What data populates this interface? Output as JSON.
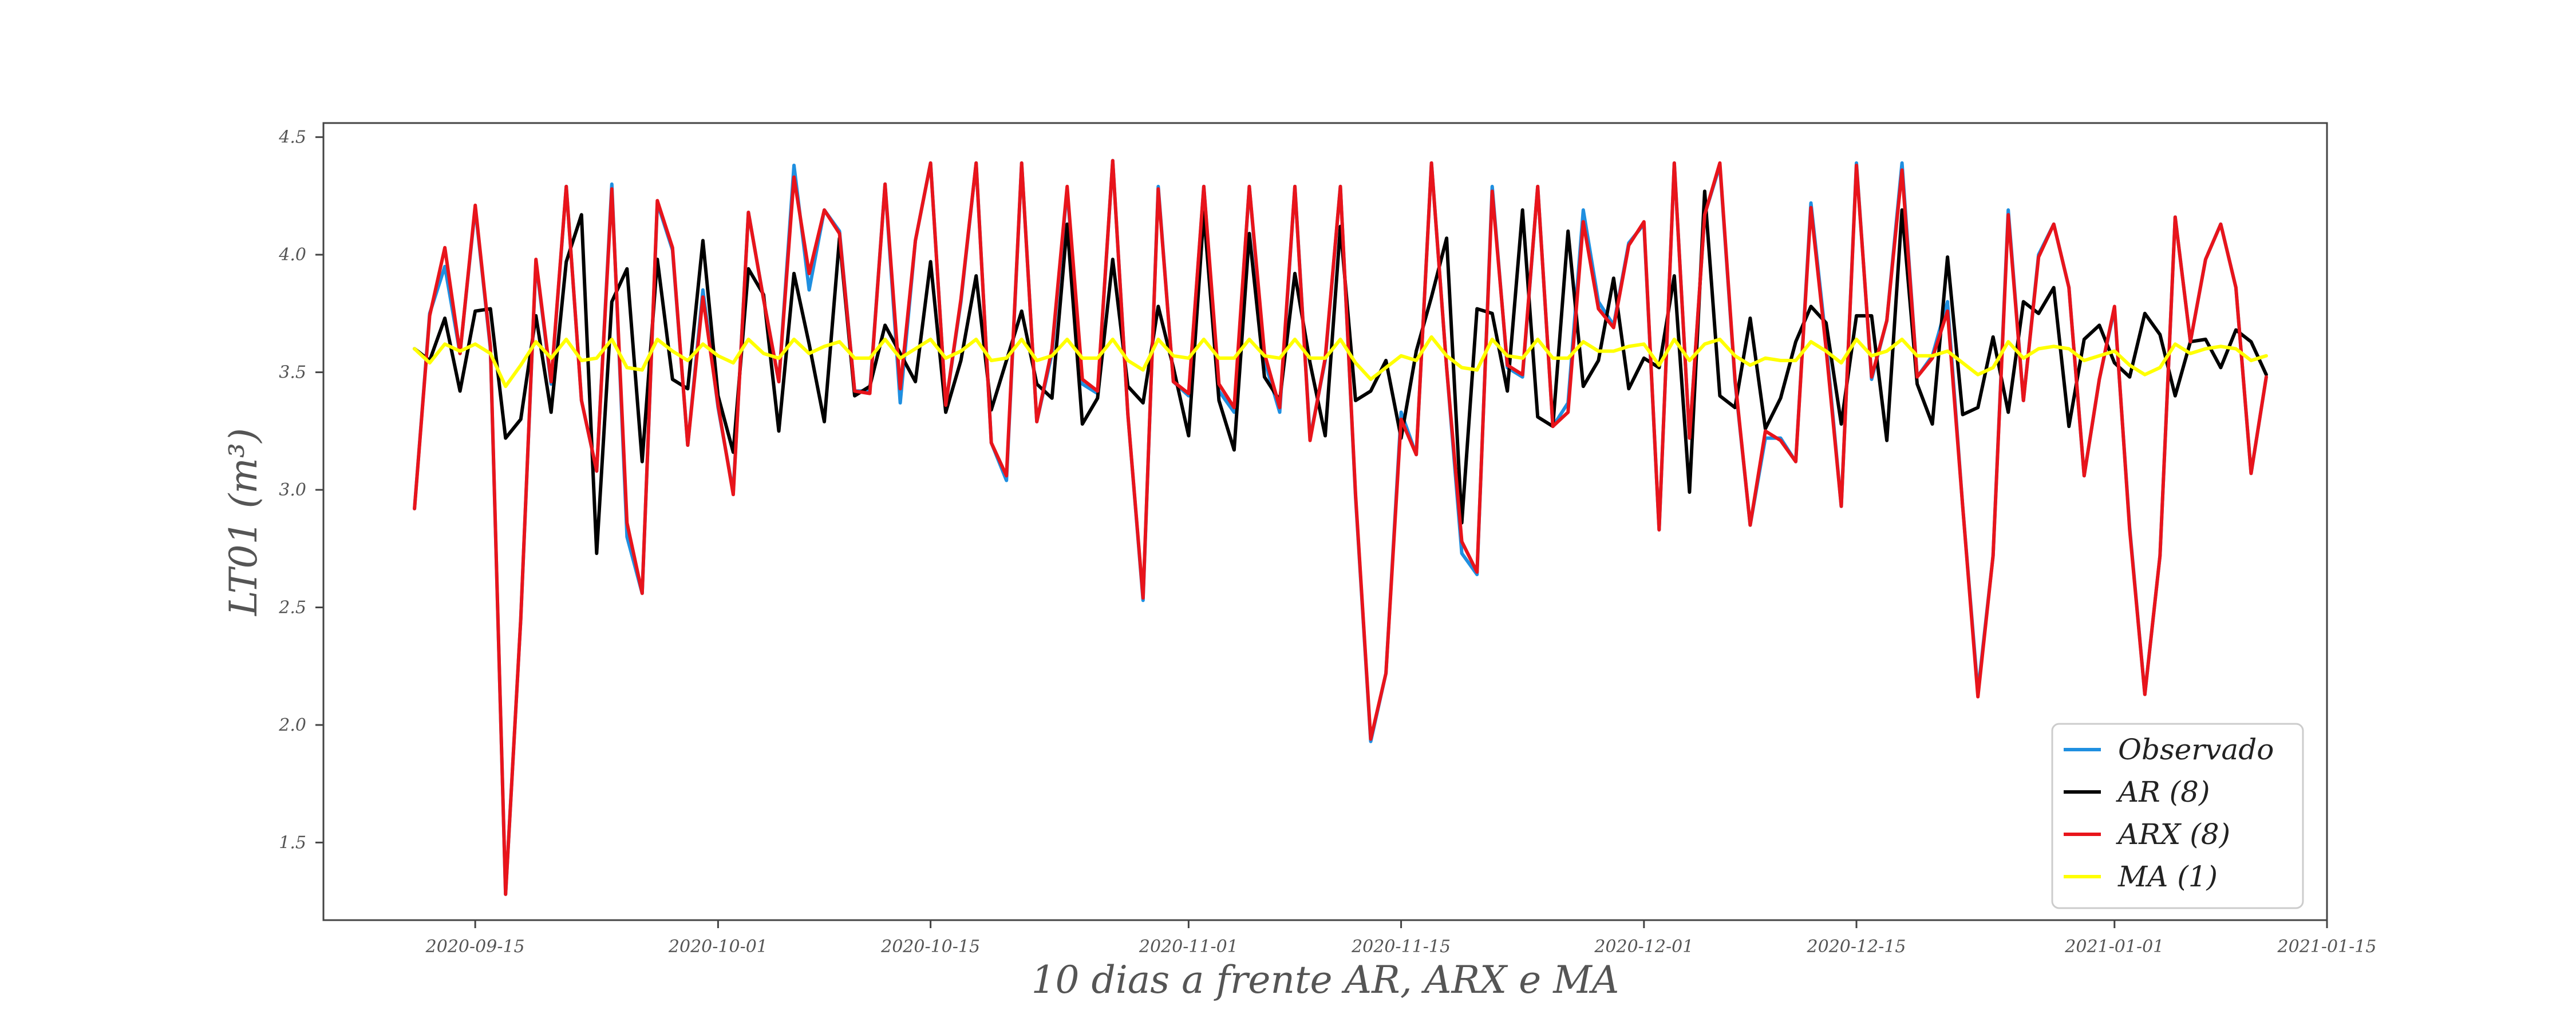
{
  "chart_data": {
    "type": "line",
    "xlabel": "10 dias a frente AR, ARX e MA",
    "ylabel": "LT01 (m³)",
    "x_start_date": "2020-09-11",
    "x_step_days": 1,
    "xlim": [
      "2020-09-05",
      "2021-01-15"
    ],
    "ylim": [
      1.17,
      4.56
    ],
    "x_ticks": [
      "2020-09-15",
      "2020-10-01",
      "2020-10-15",
      "2020-11-01",
      "2020-11-15",
      "2020-12-01",
      "2020-12-15",
      "2021-01-01",
      "2021-01-15"
    ],
    "y_ticks": [
      1.5,
      2.0,
      2.5,
      3.0,
      3.5,
      4.0,
      4.5
    ],
    "legend_position": "bottom-right",
    "grid": false,
    "series": [
      {
        "name": "Observado",
        "color": "#1f8fe0",
        "values": [
          2.92,
          3.75,
          3.95,
          3.58,
          4.2,
          3.6,
          1.28,
          2.45,
          3.97,
          3.45,
          4.29,
          3.38,
          3.08,
          4.3,
          2.8,
          2.56,
          4.22,
          4.02,
          3.19,
          3.85,
          3.35,
          2.99,
          4.18,
          3.81,
          3.46,
          4.38,
          3.85,
          4.19,
          4.1,
          3.42,
          3.42,
          4.3,
          3.37,
          4.06,
          4.39,
          3.36,
          3.8,
          4.39,
          3.2,
          3.04,
          4.39,
          3.29,
          3.58,
          4.28,
          3.45,
          3.41,
          4.4,
          3.32,
          2.53,
          4.29,
          3.46,
          3.4,
          4.29,
          3.42,
          3.33,
          4.29,
          3.55,
          3.33,
          4.29,
          3.22,
          3.55,
          4.29,
          2.97,
          1.93,
          2.22,
          3.33,
          3.15,
          4.39,
          3.52,
          2.73,
          2.64,
          4.29,
          3.52,
          3.48,
          4.29,
          3.27,
          3.37,
          4.19,
          3.8,
          3.7,
          4.05,
          4.13,
          2.83,
          4.39,
          3.22,
          4.17,
          4.38,
          3.46,
          2.85,
          3.22,
          3.22,
          3.12,
          4.22,
          3.63,
          2.93,
          4.39,
          3.47,
          3.72,
          4.39,
          3.48,
          3.57,
          3.8,
          2.93,
          2.14,
          2.72,
          4.19,
          3.38,
          4.0,
          4.13,
          3.86,
          3.06,
          3.47,
          3.77,
          2.84,
          2.13,
          2.72,
          4.16,
          3.63,
          3.98,
          4.13,
          3.86,
          3.07,
          3.48
        ]
      },
      {
        "name": "AR (8)",
        "color": "#000000",
        "values": [
          3.6,
          3.55,
          3.73,
          3.42,
          3.76,
          3.77,
          3.22,
          3.3,
          3.74,
          3.33,
          3.97,
          4.17,
          2.73,
          3.8,
          3.94,
          3.12,
          3.98,
          3.47,
          3.43,
          4.06,
          3.4,
          3.16,
          3.94,
          3.83,
          3.25,
          3.92,
          3.62,
          3.29,
          4.07,
          3.4,
          3.44,
          3.7,
          3.58,
          3.46,
          3.97,
          3.33,
          3.55,
          3.91,
          3.34,
          3.55,
          3.76,
          3.45,
          3.39,
          4.13,
          3.28,
          3.39,
          3.98,
          3.44,
          3.37,
          3.78,
          3.52,
          3.23,
          4.18,
          3.38,
          3.17,
          4.09,
          3.48,
          3.38,
          3.92,
          3.54,
          3.23,
          4.12,
          3.38,
          3.42,
          3.55,
          3.22,
          3.59,
          3.82,
          4.07,
          2.86,
          3.77,
          3.75,
          3.42,
          4.19,
          3.31,
          3.27,
          4.1,
          3.44,
          3.55,
          3.9,
          3.43,
          3.56,
          3.52,
          3.91,
          2.99,
          4.27,
          3.4,
          3.35,
          3.73,
          3.26,
          3.39,
          3.63,
          3.78,
          3.71,
          3.28,
          3.74,
          3.74,
          3.21,
          4.19,
          3.45,
          3.28,
          3.99,
          3.32,
          3.35,
          3.65,
          3.33,
          3.8,
          3.75,
          3.86,
          3.27,
          3.64,
          3.7,
          3.54,
          3.48,
          3.75,
          3.66,
          3.4,
          3.63,
          3.64,
          3.52,
          3.68,
          3.63,
          3.49
        ]
      },
      {
        "name": "ARX (8)",
        "color": "#e8141b",
        "values": [
          2.92,
          3.74,
          4.03,
          3.58,
          4.21,
          3.61,
          1.28,
          2.45,
          3.98,
          3.46,
          4.29,
          3.38,
          3.08,
          4.28,
          2.86,
          2.56,
          4.23,
          4.03,
          3.19,
          3.82,
          3.36,
          2.98,
          4.18,
          3.81,
          3.46,
          4.33,
          3.92,
          4.19,
          4.09,
          3.42,
          3.41,
          4.3,
          3.43,
          4.06,
          4.39,
          3.36,
          3.81,
          4.39,
          3.2,
          3.06,
          4.39,
          3.29,
          3.6,
          4.29,
          3.47,
          3.42,
          4.4,
          3.32,
          2.54,
          4.28,
          3.46,
          3.41,
          4.29,
          3.45,
          3.35,
          4.29,
          3.58,
          3.35,
          4.29,
          3.21,
          3.56,
          4.29,
          2.98,
          1.94,
          2.22,
          3.3,
          3.15,
          4.39,
          3.52,
          2.78,
          2.65,
          4.27,
          3.53,
          3.49,
          4.29,
          3.27,
          3.33,
          4.14,
          3.77,
          3.69,
          4.04,
          4.14,
          2.83,
          4.39,
          3.22,
          4.17,
          4.39,
          3.47,
          2.85,
          3.25,
          3.21,
          3.12,
          4.2,
          3.6,
          2.93,
          4.38,
          3.48,
          3.72,
          4.36,
          3.48,
          3.56,
          3.76,
          2.93,
          2.12,
          2.72,
          4.17,
          3.38,
          3.99,
          4.13,
          3.86,
          3.06,
          3.47,
          3.78,
          2.83,
          2.13,
          2.72,
          4.16,
          3.63,
          3.98,
          4.13,
          3.86,
          3.07,
          3.48
        ]
      },
      {
        "name": "MA (1)",
        "color": "#ffff00",
        "values": [
          3.6,
          3.54,
          3.62,
          3.59,
          3.62,
          3.58,
          3.44,
          3.53,
          3.63,
          3.56,
          3.64,
          3.55,
          3.56,
          3.64,
          3.52,
          3.51,
          3.64,
          3.59,
          3.55,
          3.62,
          3.57,
          3.54,
          3.64,
          3.58,
          3.56,
          3.64,
          3.58,
          3.61,
          3.63,
          3.56,
          3.56,
          3.64,
          3.56,
          3.6,
          3.64,
          3.56,
          3.59,
          3.64,
          3.55,
          3.56,
          3.64,
          3.55,
          3.57,
          3.64,
          3.56,
          3.56,
          3.64,
          3.55,
          3.51,
          3.64,
          3.57,
          3.56,
          3.64,
          3.56,
          3.56,
          3.64,
          3.57,
          3.56,
          3.64,
          3.56,
          3.56,
          3.64,
          3.54,
          3.47,
          3.52,
          3.57,
          3.55,
          3.65,
          3.57,
          3.52,
          3.51,
          3.64,
          3.57,
          3.56,
          3.64,
          3.56,
          3.56,
          3.63,
          3.59,
          3.59,
          3.61,
          3.62,
          3.53,
          3.64,
          3.55,
          3.62,
          3.64,
          3.57,
          3.53,
          3.56,
          3.55,
          3.55,
          3.63,
          3.59,
          3.54,
          3.64,
          3.57,
          3.59,
          3.64,
          3.57,
          3.57,
          3.59,
          3.54,
          3.49,
          3.52,
          3.63,
          3.56,
          3.6,
          3.61,
          3.6,
          3.55,
          3.57,
          3.59,
          3.53,
          3.49,
          3.52,
          3.62,
          3.58,
          3.6,
          3.61,
          3.6,
          3.55,
          3.57
        ]
      }
    ]
  }
}
